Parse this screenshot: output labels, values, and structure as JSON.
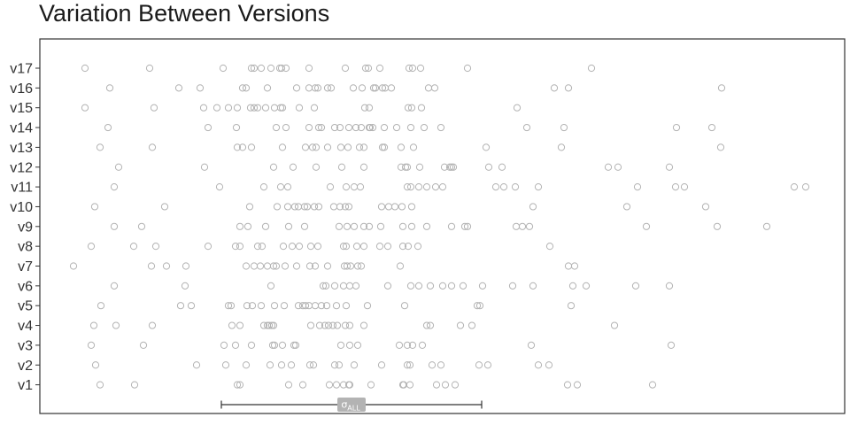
{
  "title": "Variation Between Versions",
  "chart_data": {
    "type": "scatter",
    "title": "Variation Between Versions",
    "xlabel": "",
    "ylabel": "",
    "grid": false,
    "xlim": [
      0,
      912
    ],
    "categories": [
      "v1",
      "v2",
      "v3",
      "v4",
      "v5",
      "v6",
      "v7",
      "v8",
      "v9",
      "v10",
      "v11",
      "v12",
      "v13",
      "v14",
      "v15",
      "v16",
      "v17"
    ],
    "series": [
      {
        "values": [
          {
            "category": "v1",
            "x": [
              68,
              107,
              223,
              226,
              281,
              297,
              327,
              335,
              343,
              349,
              350,
              374,
              410,
              411,
              418,
              448,
              458,
              469,
              596,
              607,
              692
            ]
          }
        ]
      },
      {
        "values": [
          {
            "category": "v2",
            "x": [
              63,
              177,
              210,
              233,
              260,
              273,
              284,
              305,
              309,
              333,
              338,
              355,
              386,
              415,
              418,
              443,
              453,
              496,
              506,
              563,
              575
            ]
          }
        ]
      },
      {
        "values": [
          {
            "category": "v3",
            "x": [
              58,
              117,
              208,
              221,
              239,
              263,
              265,
              274,
              287,
              289,
              340,
              350,
              359,
              406,
              415,
              421,
              432,
              555,
              713
            ]
          }
        ]
      },
      {
        "values": [
          {
            "category": "v4",
            "x": [
              61,
              86,
              127,
              217,
              226,
              253,
              257,
              259,
              262,
              264,
              306,
              316,
              322,
              326,
              331,
              336,
              345,
              350,
              366,
              437,
              441,
              475,
              488,
              649
            ]
          }
        ]
      },
      {
        "values": [
          {
            "category": "v5",
            "x": [
              69,
              159,
              171,
              213,
              216,
              234,
              240,
              250,
              265,
              276,
              292,
              297,
              300,
              304,
              311,
              318,
              324,
              335,
              346,
              370,
              412,
              494,
              497,
              600
            ]
          }
        ]
      },
      {
        "values": [
          {
            "category": "v6",
            "x": [
              84,
              164,
              261,
              320,
              323,
              333,
              343,
              350,
              357,
              393,
              419,
              428,
              441,
              455,
              465,
              478,
              500,
              534,
              557,
              602,
              617,
              673,
              711
            ]
          }
        ]
      },
      {
        "values": [
          {
            "category": "v7",
            "x": [
              38,
              126,
              143,
              165,
              233,
              242,
              249,
              257,
              264,
              267,
              277,
              290,
              305,
              311,
              325,
              344,
              347,
              351,
              359,
              363,
              407,
              597,
              604
            ]
          }
        ]
      },
      {
        "values": [
          {
            "category": "v8",
            "x": [
              58,
              106,
              131,
              190,
              221,
              226,
              246,
              251,
              275,
              285,
              293,
              306,
              314,
              343,
              346,
              358,
              366,
              384,
              393,
              410,
              416,
              427,
              576
            ]
          }
        ]
      },
      {
        "values": [
          {
            "category": "v9",
            "x": [
              84,
              115,
              226,
              235,
              255,
              281,
              299,
              338,
              347,
              355,
              366,
              372,
              385,
              410,
              420,
              437,
              465,
              480,
              483,
              538,
              545,
              553,
              685,
              765,
              821
            ]
          }
        ]
      },
      {
        "values": [
          {
            "category": "v10",
            "x": [
              62,
              141,
              237,
              268,
              280,
              288,
              292,
              299,
              302,
              310,
              315,
              332,
              339,
              345,
              349,
              386,
              394,
              401,
              409,
              420,
              557,
              663,
              752
            ]
          }
        ]
      },
      {
        "values": [
          {
            "category": "v11",
            "x": [
              84,
              203,
              253,
              272,
              280,
              328,
              346,
              355,
              362,
              415,
              419,
              428,
              437,
              447,
              455,
              515,
              524,
              537,
              563,
              675,
              718,
              728,
              852,
              865
            ]
          }
        ]
      },
      {
        "values": [
          {
            "category": "v12",
            "x": [
              89,
              186,
              264,
              286,
              312,
              341,
              366,
              408,
              413,
              415,
              429,
              457,
              463,
              465,
              467,
              507,
              522,
              642,
              653,
              711
            ]
          }
        ]
      },
      {
        "values": [
          {
            "category": "v13",
            "x": [
              68,
              127,
              223,
              229,
              239,
              274,
              300,
              308,
              312,
              325,
              340,
              348,
              361,
              366,
              387,
              389,
              408,
              422,
              504,
              589,
              769
            ]
          }
        ]
      },
      {
        "values": [
          {
            "category": "v14",
            "x": [
              77,
              190,
              222,
              267,
              278,
              304,
              315,
              318,
              333,
              339,
              349,
              357,
              363,
              372,
              373,
              376,
              389,
              403,
              419,
              434,
              453,
              550,
              592,
              719,
              759
            ]
          }
        ]
      },
      {
        "values": [
          {
            "category": "v15",
            "x": [
              51,
              129,
              185,
              200,
              213,
              223,
              238,
              242,
              246,
              255,
              265,
              272,
              274,
              293,
              310,
              367,
              372,
              416,
              420,
              431,
              539
            ]
          }
        ]
      },
      {
        "values": [
          {
            "category": "v16",
            "x": [
              79,
              157,
              181,
              229,
              233,
              257,
              290,
              304,
              311,
              314,
              325,
              329,
              354,
              364,
              377,
              379,
              387,
              390,
              397,
              439,
              446,
              581,
              597,
              770
            ]
          }
        ]
      },
      {
        "values": [
          {
            "category": "v17",
            "x": [
              51,
              124,
              207,
              239,
              242,
              250,
              261,
              271,
              273,
              278,
              304,
              345,
              368,
              371,
              384,
              417,
              421,
              430,
              483,
              623
            ]
          }
        ]
      }
    ],
    "annotation": {
      "type": "range-bar",
      "label": "σ",
      "subscript": "ALL",
      "x_start": 205,
      "x_end": 499
    }
  }
}
